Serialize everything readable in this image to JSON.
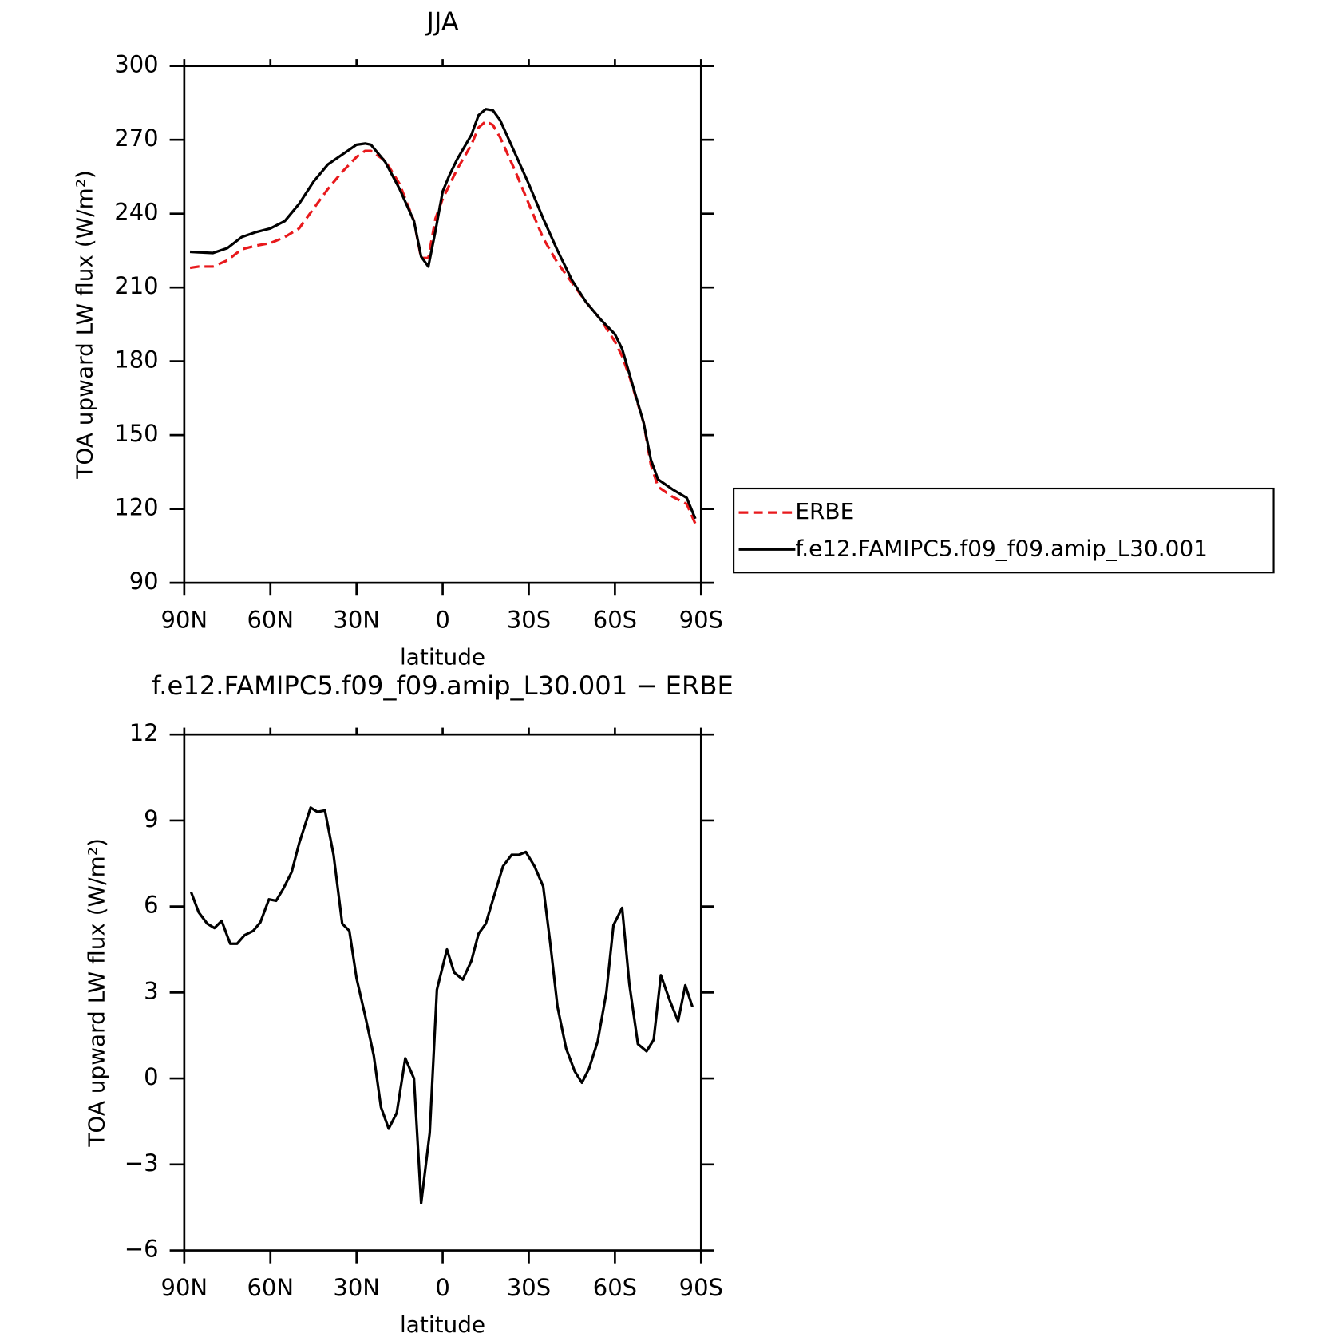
{
  "chart_data": [
    {
      "type": "line",
      "title": "JJA",
      "xlabel": "latitude",
      "ylabel": "TOA upward LW flux (W/m²)",
      "x": [
        88,
        85,
        80,
        75,
        70,
        65,
        60,
        55,
        50,
        45,
        40,
        35,
        30,
        27,
        25,
        20,
        15,
        10,
        7.5,
        5,
        2.5,
        0,
        -2.5,
        -5,
        -10,
        -12.5,
        -15,
        -17.5,
        -20,
        -25,
        -30,
        -35,
        -40,
        -45,
        -50,
        -55,
        -60,
        -62.5,
        -65,
        -70,
        -72.5,
        -75,
        -80,
        -85,
        -88
      ],
      "series": [
        {
          "name": "ERBE",
          "color": "#e8191c",
          "line_style": "dashed",
          "values": [
            218,
            218.5,
            218.5,
            221,
            225.5,
            227,
            228,
            230.5,
            234,
            242,
            250,
            257,
            263,
            265.5,
            265.5,
            261.5,
            252,
            237,
            222,
            222,
            238,
            246,
            252,
            258,
            268,
            275,
            277.5,
            276,
            271,
            258,
            244,
            230,
            220,
            212,
            204,
            197,
            188,
            182,
            174,
            155,
            138,
            129,
            125,
            122,
            114
          ]
        },
        {
          "name": "f.e12.FAMIPC5.f09_f09.amip_L30.001",
          "color": "#000000",
          "line_style": "solid",
          "values": [
            224.5,
            224.3,
            224,
            226,
            230.5,
            232.5,
            234,
            237,
            244,
            253,
            260,
            264,
            268,
            268.5,
            268,
            261,
            250,
            237,
            222.5,
            218.5,
            233,
            249,
            256,
            262,
            272,
            280,
            282.5,
            282,
            278,
            265,
            252,
            238,
            225,
            213,
            204,
            197,
            191,
            185,
            175,
            155,
            140,
            132,
            128,
            124.5,
            116
          ]
        }
      ],
      "xlim": [
        90,
        -90
      ],
      "xticks": [
        {
          "value": 90,
          "label": "90N"
        },
        {
          "value": 60,
          "label": "60N"
        },
        {
          "value": 30,
          "label": "30N"
        },
        0,
        {
          "value": -30,
          "label": "30S"
        },
        {
          "value": -60,
          "label": "60S"
        },
        {
          "value": -90,
          "label": "90S"
        }
      ],
      "ylim": [
        90,
        300
      ],
      "yticks": [
        90,
        120,
        150,
        180,
        210,
        240,
        270,
        300
      ],
      "legend": "right"
    },
    {
      "type": "line",
      "title": "f.e12.FAMIPC5.f09_f09.amip_L30.001 − ERBE",
      "xlabel": "latitude",
      "ylabel": "TOA upward LW flux (W/m²)",
      "x": [
        87.6,
        85,
        82,
        79.5,
        77,
        74,
        71.6,
        69,
        66,
        63.5,
        60.5,
        58,
        55.6,
        52.6,
        50,
        46,
        43.6,
        41,
        38,
        35,
        32.5,
        30,
        27,
        24,
        21.5,
        18.8,
        16,
        13,
        10,
        7.5,
        4.5,
        2,
        -1.5,
        -4,
        -7,
        -10,
        -12.5,
        -15,
        -18,
        -21,
        -24,
        -26.5,
        -29,
        -32,
        -35,
        -37.5,
        -40,
        -43,
        -46,
        -48.5,
        -51,
        -54,
        -57,
        -59.5,
        -62.5,
        -65,
        -68,
        -71,
        -73.5,
        -76,
        -79,
        -82,
        -84.5,
        -87
      ],
      "series": [
        {
          "color": "#000000",
          "line_style": "solid",
          "values": [
            6.5,
            5.8,
            5.4,
            5.25,
            5.5,
            4.7,
            4.7,
            5.0,
            5.15,
            5.45,
            6.25,
            6.2,
            6.6,
            7.2,
            8.2,
            9.45,
            9.3,
            9.35,
            7.8,
            5.4,
            5.15,
            3.5,
            2.2,
            0.8,
            -1.0,
            -1.75,
            -1.2,
            0.7,
            0.0,
            -4.35,
            -1.9,
            3.1,
            4.5,
            3.7,
            3.45,
            4.1,
            5.05,
            5.4,
            6.4,
            7.4,
            7.8,
            7.8,
            7.9,
            7.4,
            6.7,
            4.7,
            2.5,
            1.05,
            0.25,
            -0.15,
            0.35,
            1.3,
            3.0,
            5.35,
            5.95,
            3.3,
            1.2,
            0.95,
            1.35,
            3.6,
            2.75,
            2.0,
            3.25,
            2.5
          ]
        }
      ],
      "xlim": [
        90,
        -90
      ],
      "xticks": [
        {
          "value": 90,
          "label": "90N"
        },
        {
          "value": 60,
          "label": "60N"
        },
        {
          "value": 30,
          "label": "30N"
        },
        0,
        {
          "value": -30,
          "label": "30S"
        },
        {
          "value": -60,
          "label": "60S"
        },
        {
          "value": -90,
          "label": "90S"
        }
      ],
      "ylim": [
        -6,
        12
      ],
      "yticks": [
        {
          "value": -6,
          "label": "−6"
        },
        {
          "value": -3,
          "label": "−3"
        },
        0,
        3,
        6,
        9,
        12
      ]
    }
  ]
}
